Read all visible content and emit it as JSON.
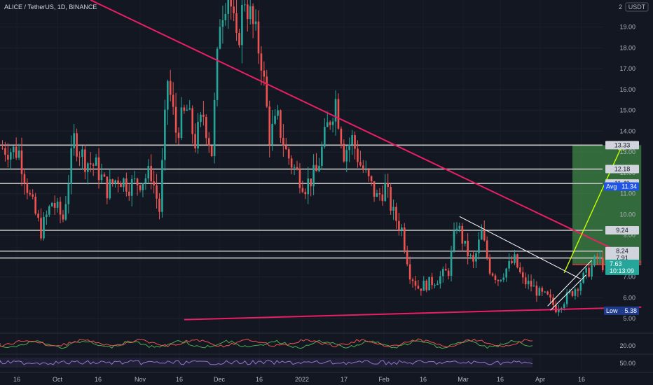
{
  "header": {
    "title": "ALICE / TetherUS, 1D, BINANCE",
    "currency": "USDT",
    "scale_top": "2"
  },
  "colors": {
    "background": "#131722",
    "up": "#26a69a",
    "down": "#ef5350",
    "trend_pink": "#e91e63",
    "level_gray": "#c8c8c8",
    "target_zone": "#4caf50",
    "stop_zone": "#ef5350",
    "arrow_yellow": "#c6ff00",
    "price_tag": "#26a69a",
    "tag_bg": "#363a45",
    "avg_tag": "#1e53e5",
    "low_tag": "#1e3a8a"
  },
  "chart_data": {
    "type": "candlestick",
    "title": "ALICE / TetherUS, 1D, BINANCE",
    "ylim": [
      4.5,
      20.3
    ],
    "y_ticks": [
      5.0,
      6.0,
      7.0,
      8.0,
      9.0,
      10.0,
      11.0,
      12.0,
      13.0,
      14.0,
      15.0,
      16.0,
      17.0,
      18.0,
      19.0
    ],
    "x_ticks": [
      "16",
      "Oct",
      "16",
      "Nov",
      "16",
      "Dec",
      "16",
      "2022",
      "17",
      "Feb",
      "16",
      "Mar",
      "16",
      "Apr",
      "16"
    ],
    "close_path": [
      {
        "day": 0,
        "price": 13.2
      },
      {
        "day": 6,
        "price": 13.0
      },
      {
        "day": 10,
        "price": 10.8
      },
      {
        "day": 14,
        "price": 9.2
      },
      {
        "day": 18,
        "price": 10.6
      },
      {
        "day": 22,
        "price": 9.8
      },
      {
        "day": 26,
        "price": 13.6
      },
      {
        "day": 30,
        "price": 12.6
      },
      {
        "day": 34,
        "price": 12.3
      },
      {
        "day": 38,
        "price": 11.2
      },
      {
        "day": 42,
        "price": 11.8
      },
      {
        "day": 46,
        "price": 11.4
      },
      {
        "day": 50,
        "price": 11.6
      },
      {
        "day": 54,
        "price": 12.0
      },
      {
        "day": 57,
        "price": 10.2
      },
      {
        "day": 60,
        "price": 16.5
      },
      {
        "day": 63,
        "price": 14.0
      },
      {
        "day": 67,
        "price": 15.0
      },
      {
        "day": 70,
        "price": 13.5
      },
      {
        "day": 73,
        "price": 14.8
      },
      {
        "day": 76,
        "price": 13.0
      },
      {
        "day": 79,
        "price": 19.5
      },
      {
        "day": 82,
        "price": 21.0
      },
      {
        "day": 85,
        "price": 18.0
      },
      {
        "day": 88,
        "price": 20.5
      },
      {
        "day": 91,
        "price": 19.0
      },
      {
        "day": 94,
        "price": 17.5
      },
      {
        "day": 97,
        "price": 13.8
      },
      {
        "day": 100,
        "price": 14.5
      },
      {
        "day": 103,
        "price": 13.0
      },
      {
        "day": 106,
        "price": 12.2
      },
      {
        "day": 110,
        "price": 11.4
      },
      {
        "day": 114,
        "price": 12.0
      },
      {
        "day": 118,
        "price": 14.2
      },
      {
        "day": 121,
        "price": 15.5
      },
      {
        "day": 124,
        "price": 13.0
      },
      {
        "day": 127,
        "price": 13.6
      },
      {
        "day": 130,
        "price": 12.4
      },
      {
        "day": 133,
        "price": 11.6
      },
      {
        "day": 136,
        "price": 10.8
      },
      {
        "day": 139,
        "price": 11.3
      },
      {
        "day": 142,
        "price": 10.0
      },
      {
        "day": 145,
        "price": 9.3
      },
      {
        "day": 148,
        "price": 7.2
      },
      {
        "day": 151,
        "price": 6.5
      },
      {
        "day": 155,
        "price": 6.7
      },
      {
        "day": 159,
        "price": 7.0
      },
      {
        "day": 162,
        "price": 7.3
      },
      {
        "day": 165,
        "price": 9.6
      },
      {
        "day": 168,
        "price": 8.4
      },
      {
        "day": 171,
        "price": 7.6
      },
      {
        "day": 174,
        "price": 9.1
      },
      {
        "day": 177,
        "price": 7.4
      },
      {
        "day": 180,
        "price": 6.9
      },
      {
        "day": 183,
        "price": 7.4
      },
      {
        "day": 186,
        "price": 7.8
      },
      {
        "day": 189,
        "price": 6.8
      },
      {
        "day": 192,
        "price": 6.6
      },
      {
        "day": 195,
        "price": 6.2
      },
      {
        "day": 198,
        "price": 6.0
      },
      {
        "day": 201,
        "price": 5.5
      },
      {
        "day": 204,
        "price": 5.9
      },
      {
        "day": 207,
        "price": 6.3
      },
      {
        "day": 210,
        "price": 6.8
      },
      {
        "day": 213,
        "price": 7.3
      },
      {
        "day": 216,
        "price": 7.9
      },
      {
        "day": 218,
        "price": 7.6
      }
    ],
    "horizontal_levels": [
      13.33,
      12.18,
      11.49,
      9.24,
      8.24,
      7.91
    ],
    "axis_tags": [
      {
        "label": "13.33",
        "value": 13.33,
        "style": "level"
      },
      {
        "label": "12.18",
        "value": 12.18,
        "style": "level"
      },
      {
        "label": "11.49",
        "value": 11.49,
        "style": "level"
      },
      {
        "label": "Avg",
        "value": 11.34,
        "price": "11.34",
        "style": "avg"
      },
      {
        "label": "9.24",
        "value": 9.24,
        "style": "level"
      },
      {
        "label": "8.24",
        "value": 8.24,
        "style": "level"
      },
      {
        "label": "7.91",
        "value": 7.91,
        "style": "level"
      },
      {
        "label": "7.63",
        "value": 7.63,
        "style": "price",
        "sub": "10:13:09"
      },
      {
        "label": "Low",
        "value": 5.38,
        "price": "5.38",
        "style": "low"
      }
    ],
    "annotations": {
      "descending_trendline": [
        {
          "day": 32,
          "price": 20.3
        },
        {
          "day": 232,
          "price": 7.7
        }
      ],
      "ascending_support": [
        {
          "day": 66,
          "price": 4.95
        },
        {
          "day": 232,
          "price": 5.55
        }
      ],
      "wedge_upper": [
        {
          "day": 166,
          "price": 9.9
        },
        {
          "day": 210,
          "price": 6.9
        }
      ],
      "wedge_lower": [
        {
          "day": 199,
          "price": 5.4
        },
        {
          "day": 212,
          "price": 7.1
        }
      ],
      "channel": [
        {
          "day": 198,
          "price": 5.6
        },
        {
          "day": 214,
          "price": 7.8
        }
      ],
      "target_zone": {
        "from_day": 207,
        "to_day": 232,
        "low": 7.63,
        "high": 13.33
      },
      "forecast_arrow": [
        {
          "day": 204,
          "price": 7.2
        },
        {
          "day": 225,
          "price": 13.3
        }
      ]
    },
    "indicator_1": {
      "label": "20.00"
    },
    "indicator_2": {
      "label": "50.00"
    }
  }
}
